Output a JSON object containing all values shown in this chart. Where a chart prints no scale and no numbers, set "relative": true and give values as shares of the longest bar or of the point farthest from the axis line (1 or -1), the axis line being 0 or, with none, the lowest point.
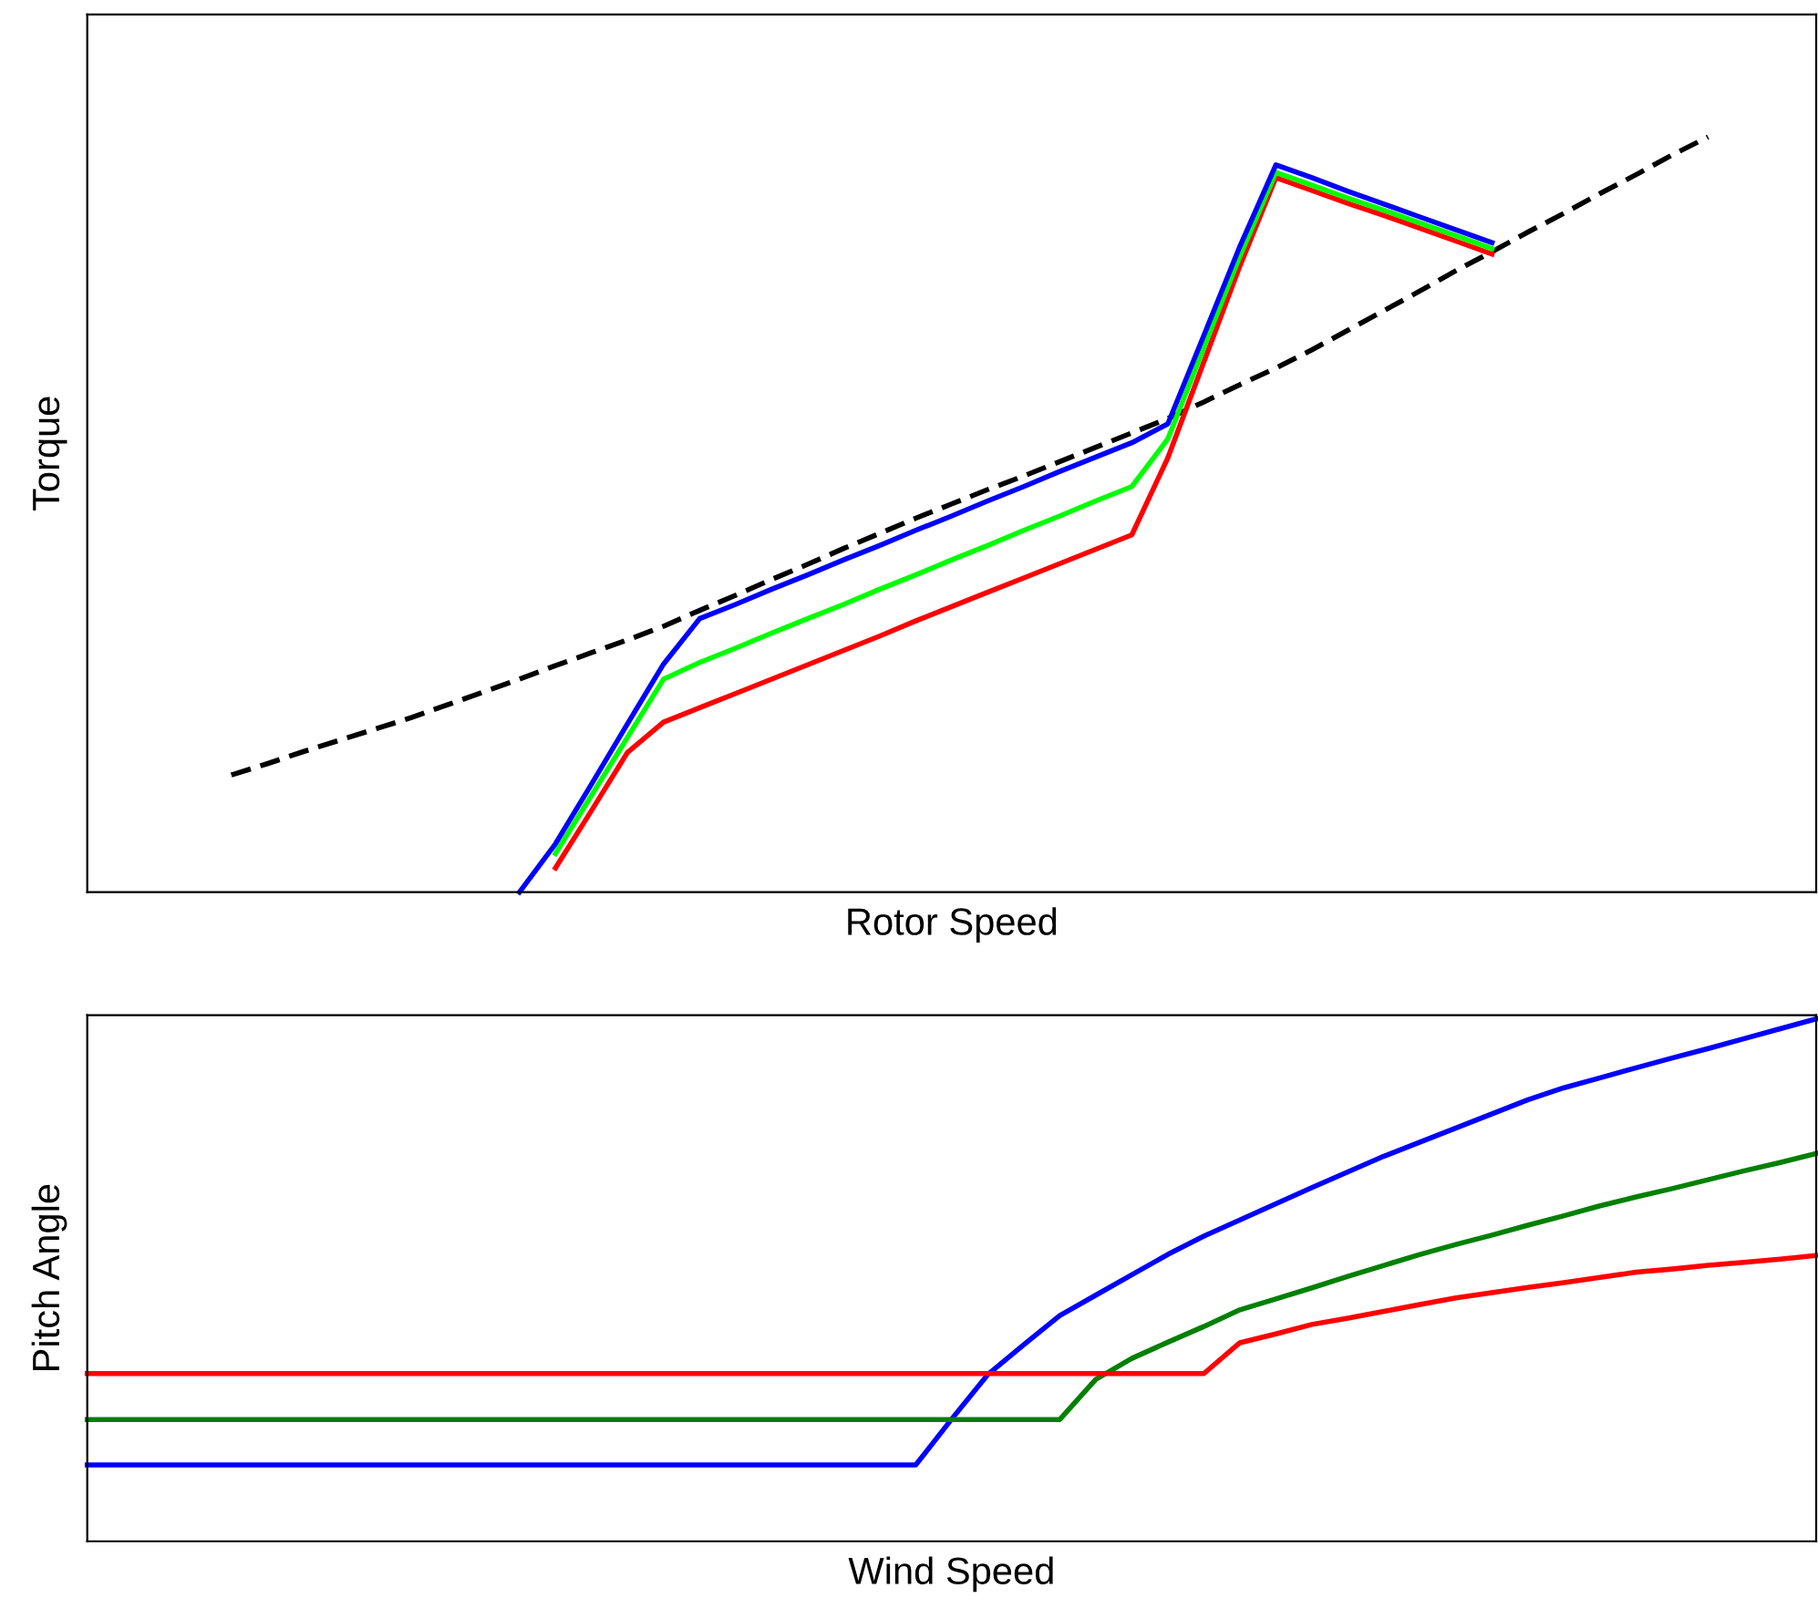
{
  "chart_data": [
    {
      "type": "line",
      "relative": true,
      "xlabel": "Rotor Speed",
      "ylabel": "Torque",
      "tick_labels": false,
      "categories": [
        null,
        null,
        null,
        null,
        null,
        null,
        null,
        null,
        null,
        null,
        null,
        null,
        null,
        null,
        null,
        null,
        null,
        null,
        null,
        null,
        null,
        null,
        null,
        null,
        null,
        null,
        null,
        null,
        null,
        null,
        null,
        null,
        null,
        null,
        null,
        null,
        null,
        null,
        null,
        null,
        null,
        null,
        null,
        null,
        null,
        null,
        null,
        null,
        null
      ],
      "series": [
        {
          "color": "#000000",
          "line_style": "dashed",
          "values": [
            null,
            null,
            null,
            null,
            0.155,
            0.17,
            0.186,
            0.201,
            0.216,
            0.231,
            0.248,
            0.265,
            0.282,
            0.3,
            0.317,
            0.334,
            0.352,
            0.373,
            0.393,
            0.414,
            0.434,
            0.455,
            0.475,
            0.495,
            0.514,
            0.533,
            0.551,
            0.57,
            0.589,
            0.608,
            0.627,
            0.649,
            0.672,
            0.694,
            0.718,
            0.744,
            0.77,
            0.796,
            0.823,
            0.848,
            0.874,
            0.899,
            0.925,
            0.95,
            0.976,
            1.0,
            null,
            null,
            null
          ]
        },
        {
          "color": "#ff0000",
          "values": [
            null,
            null,
            null,
            null,
            null,
            null,
            null,
            null,
            null,
            null,
            null,
            null,
            null,
            0.032,
            0.108,
            0.185,
            0.225,
            0.244,
            0.263,
            0.282,
            0.301,
            0.32,
            0.339,
            0.359,
            0.378,
            0.397,
            0.416,
            0.435,
            0.454,
            0.473,
            0.575,
            0.702,
            0.829,
            0.946,
            0.929,
            0.912,
            0.896,
            0.879,
            0.862,
            0.845,
            null,
            null,
            null,
            null,
            null,
            null,
            null,
            null,
            null
          ]
        },
        {
          "color": "#00ff00",
          "values": [
            null,
            null,
            null,
            null,
            null,
            null,
            null,
            null,
            null,
            null,
            null,
            null,
            null,
            0.051,
            0.128,
            0.205,
            0.282,
            0.304,
            0.323,
            0.343,
            0.362,
            0.381,
            0.401,
            0.42,
            0.44,
            0.459,
            0.479,
            0.498,
            0.518,
            0.537,
            0.6,
            0.721,
            0.842,
            0.953,
            0.936,
            0.919,
            0.903,
            0.886,
            0.869,
            0.852,
            null,
            null,
            null,
            null,
            null,
            null,
            null,
            null,
            null
          ]
        },
        {
          "color": "#0000ff",
          "values": [
            null,
            null,
            null,
            null,
            null,
            null,
            null,
            null,
            null,
            null,
            null,
            null,
            0,
            0.064,
            0.143,
            0.223,
            0.302,
            0.362,
            0.381,
            0.401,
            0.42,
            0.44,
            0.459,
            0.479,
            0.498,
            0.518,
            0.537,
            0.557,
            0.576,
            0.595,
            0.62,
            0.737,
            0.855,
            0.963,
            0.946,
            0.928,
            0.911,
            0.894,
            0.877,
            0.86,
            null,
            null,
            null,
            null,
            null,
            null,
            null,
            null,
            null
          ]
        }
      ]
    },
    {
      "type": "line",
      "relative": true,
      "xlabel": "Wind Speed",
      "ylabel": "Pitch Angle",
      "tick_labels": false,
      "categories": [
        null,
        null,
        null,
        null,
        null,
        null,
        null,
        null,
        null,
        null,
        null,
        null,
        null,
        null,
        null,
        null,
        null,
        null,
        null,
        null,
        null,
        null,
        null,
        null,
        null,
        null,
        null,
        null,
        null,
        null,
        null,
        null,
        null,
        null,
        null,
        null,
        null,
        null,
        null,
        null,
        null,
        null,
        null,
        null,
        null,
        null,
        null,
        null,
        null
      ],
      "series": [
        {
          "color": "#0000ff",
          "values": [
            0.146,
            0.146,
            0.146,
            0.146,
            0.146,
            0.146,
            0.146,
            0.146,
            0.146,
            0.146,
            0.146,
            0.146,
            0.146,
            0.146,
            0.146,
            0.146,
            0.146,
            0.146,
            0.146,
            0.146,
            0.146,
            0.146,
            0.146,
            0.146,
            0.234,
            0.319,
            0.376,
            0.432,
            0.471,
            0.51,
            0.549,
            0.584,
            0.615,
            0.646,
            0.677,
            0.707,
            0.737,
            0.764,
            0.791,
            0.818,
            0.845,
            0.868,
            0.887,
            0.906,
            0.925,
            0.943,
            0.962,
            0.981,
            1.0
          ]
        },
        {
          "color": "#008000",
          "values": [
            0.233,
            0.233,
            0.233,
            0.233,
            0.233,
            0.233,
            0.233,
            0.233,
            0.233,
            0.233,
            0.233,
            0.233,
            0.233,
            0.233,
            0.233,
            0.233,
            0.233,
            0.233,
            0.233,
            0.233,
            0.233,
            0.233,
            0.233,
            0.233,
            0.233,
            0.233,
            0.233,
            0.233,
            0.31,
            0.35,
            0.381,
            0.411,
            0.443,
            0.464,
            0.485,
            0.507,
            0.528,
            0.549,
            0.568,
            0.586,
            0.605,
            0.623,
            0.642,
            0.659,
            0.675,
            0.692,
            0.709,
            0.725,
            0.742
          ]
        },
        {
          "color": "#ff0000",
          "values": [
            0.321,
            0.321,
            0.321,
            0.321,
            0.321,
            0.321,
            0.321,
            0.321,
            0.321,
            0.321,
            0.321,
            0.321,
            0.321,
            0.321,
            0.321,
            0.321,
            0.321,
            0.321,
            0.321,
            0.321,
            0.321,
            0.321,
            0.321,
            0.321,
            0.321,
            0.321,
            0.321,
            0.321,
            0.321,
            0.321,
            0.321,
            0.321,
            0.38,
            0.397,
            0.415,
            0.427,
            0.44,
            0.453,
            0.466,
            0.476,
            0.486,
            0.495,
            0.505,
            0.515,
            0.521,
            0.528,
            0.534,
            0.54,
            0.547
          ]
        }
      ]
    }
  ]
}
